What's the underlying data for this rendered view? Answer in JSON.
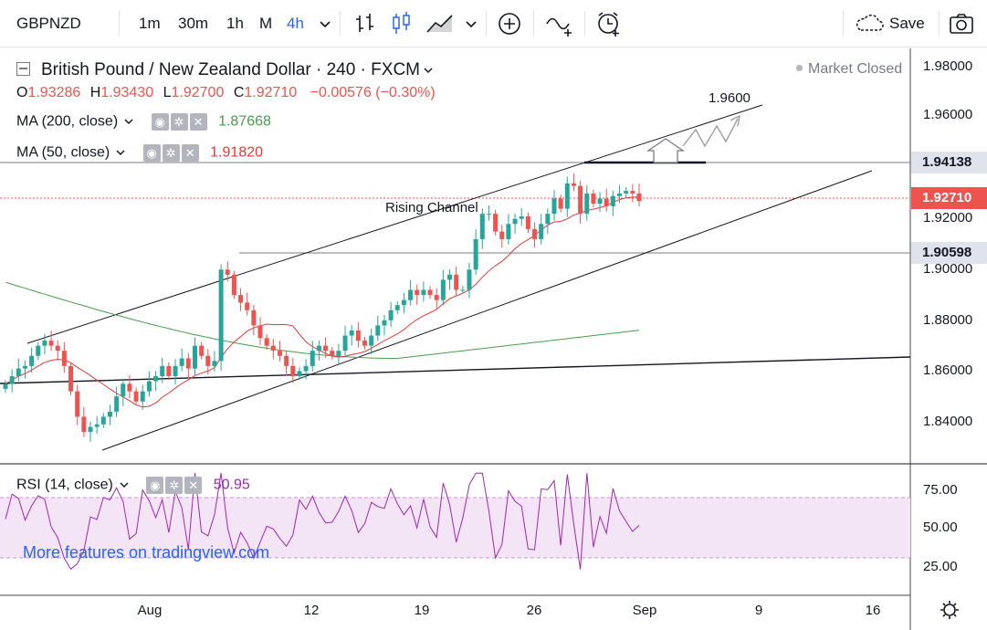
{
  "toolbar": {
    "symbol": "GBPNZD",
    "intervals": [
      "1m",
      "30m",
      "1h",
      "M",
      "4h"
    ],
    "active_interval": "4h",
    "save_label": "Save",
    "icons": [
      "dropdown-chevron-icon",
      "bar-style-icon",
      "candles-icon",
      "area-chart-icon",
      "chevron-down-icon",
      "compare-plus-icon",
      "indicators-icon",
      "alert-clock-icon",
      "cloud-icon",
      "camera-icon"
    ]
  },
  "legend": {
    "title": "British Pound / New Zealand Dollar · 240 · FXCM",
    "open_label": "O",
    "open": "1.93286",
    "high_label": "H",
    "high": "1.93430",
    "low_label": "L",
    "low": "1.92700",
    "close_label": "C",
    "close": "1.92710",
    "change": "−0.00576 (−0.30%)",
    "ma200_label": "MA (200, close)",
    "ma200_value": "1.87668",
    "ma50_label": "MA (50, close)",
    "ma50_value": "1.91820",
    "market_status": "Market Closed"
  },
  "annotations": {
    "target_label": "1.9600",
    "channel_label": "Rising Channel"
  },
  "price_axis": {
    "ticks": [
      "1.98000",
      "1.96000",
      "1.92000",
      "1.90000",
      "1.88000",
      "1.86000",
      "1.84000"
    ],
    "tags": [
      {
        "value": "1.94138",
        "bg": "#e0e3eb",
        "color": "#131722"
      },
      {
        "value": "1.92710",
        "bg": "#ef5350",
        "color": "#ffffff"
      },
      {
        "value": "1.90598",
        "bg": "#e0e3eb",
        "color": "#131722"
      }
    ]
  },
  "time_axis": {
    "ticks": [
      "Aug",
      "12",
      "19",
      "26",
      "Sep",
      "9",
      "16"
    ]
  },
  "rsi": {
    "label": "RSI (14, close)",
    "value": "50.95",
    "ticks": [
      "75.00",
      "50.00",
      "25.00"
    ]
  },
  "watermark": "More features on tradingview.com",
  "colors": {
    "up": "#26a69a",
    "down": "#ef5350",
    "ma200": "#43a047",
    "ma50": "#e53935",
    "rsi_line": "#9c27b0",
    "rsi_band": "#f3e5f5",
    "accent": "#2962ff"
  },
  "chart_data": {
    "type": "candlestick",
    "symbol": "GBPNZD",
    "ylim": [
      1.825,
      1.99
    ],
    "candles_close_path": [
      1.855,
      1.858,
      1.861,
      1.862,
      1.866,
      1.87,
      1.872,
      1.87,
      1.868,
      1.862,
      1.852,
      1.842,
      1.836,
      1.838,
      1.839,
      1.842,
      1.844,
      1.85,
      1.855,
      1.852,
      1.848,
      1.852,
      1.856,
      1.858,
      1.862,
      1.858,
      1.862,
      1.865,
      1.861,
      1.87,
      1.866,
      1.862,
      1.864,
      1.9,
      1.898,
      1.89,
      1.887,
      1.884,
      1.878,
      1.873,
      1.87,
      1.868,
      1.866,
      1.862,
      1.858,
      1.86,
      1.862,
      1.868,
      1.87,
      1.868,
      1.866,
      1.868,
      1.874,
      1.876,
      1.872,
      1.87,
      1.874,
      1.878,
      1.88,
      1.884,
      1.886,
      1.888,
      1.892,
      1.89,
      1.892,
      1.89,
      1.888,
      1.896,
      1.898,
      1.892,
      1.892,
      1.9,
      1.912,
      1.922,
      1.922,
      1.915,
      1.912,
      1.918,
      1.92,
      1.921,
      1.916,
      1.912,
      1.918,
      1.922,
      1.928,
      1.924,
      1.934,
      1.933,
      1.922,
      1.93,
      1.926,
      1.928,
      1.925,
      1.929,
      1.93,
      1.931,
      1.93,
      1.927
    ]
  }
}
